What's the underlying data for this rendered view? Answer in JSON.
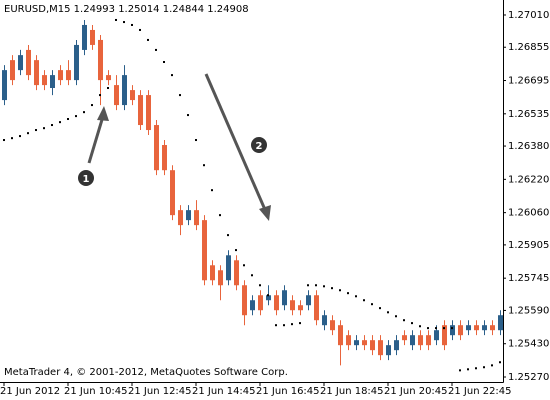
{
  "chart_data": {
    "type": "candlestick",
    "title": "EURUSD,M15  1.24993 1.25014 1.24844 1.24908",
    "footer": "MetaTrader 4, © 2001-2012, MetaQuotes Software Corp.",
    "annotations": [
      "1",
      "2"
    ],
    "bull_color": "#2b5f8a",
    "bear_color": "#e8643c",
    "sar_color": "#000000",
    "ylim": [
      1.25246,
      1.27082
    ],
    "yticks": [
      {
        "value": 1.2701,
        "label": "1.27010"
      },
      {
        "value": 1.26855,
        "label": "1.26855"
      },
      {
        "value": 1.26695,
        "label": "1.26695"
      },
      {
        "value": 1.26535,
        "label": "1.26535"
      },
      {
        "value": 1.2638,
        "label": "1.26380"
      },
      {
        "value": 1.2622,
        "label": "1.26220"
      },
      {
        "value": 1.2606,
        "label": "1.26060"
      },
      {
        "value": 1.25905,
        "label": "1.25905"
      },
      {
        "value": 1.25745,
        "label": "1.25745"
      },
      {
        "value": 1.2559,
        "label": "1.25590"
      },
      {
        "value": 1.2543,
        "label": "1.25430"
      },
      {
        "value": 1.2527,
        "label": "1.25270"
      }
    ],
    "xticks": [
      {
        "value": 0,
        "label": "21 Jun 2012"
      },
      {
        "value": 8,
        "label": "21 Jun 10:45"
      },
      {
        "value": 16,
        "label": "21 Jun 12:45"
      },
      {
        "value": 24,
        "label": "21 Jun 14:45"
      },
      {
        "value": 32,
        "label": "21 Jun 16:45"
      },
      {
        "value": 40,
        "label": "21 Jun 18:45"
      },
      {
        "value": 48,
        "label": "21 Jun 20:45"
      },
      {
        "value": 56,
        "label": "21 Jun 22:45"
      }
    ],
    "open": [
      1.26601,
      1.26793,
      1.26745,
      1.26842,
      1.26793,
      1.26721,
      1.26659,
      1.26745,
      1.26745,
      1.26697,
      1.26842,
      1.26938,
      1.2689,
      1.26721,
      1.26673,
      1.26577,
      1.26649,
      1.26625,
      1.26625,
      1.26481,
      1.26385,
      1.26264,
      1.26072,
      1.26024,
      1.26072,
      1.26024,
      1.25807,
      1.25783,
      1.25735,
      1.25831,
      1.25711,
      1.25591,
      1.25663,
      1.25639,
      1.25663,
      1.25615,
      1.25639,
      1.25615,
      1.25615,
      1.25663,
      1.25519,
      1.25543,
      1.25519,
      1.25471,
      1.25423,
      1.25447,
      1.25447,
      1.25447,
      1.25375,
      1.25399,
      1.25471,
      1.25423,
      1.25471,
      1.25471,
      1.25447,
      1.25519,
      1.25471,
      1.25519,
      1.25495,
      1.25519,
      1.25495,
      1.25519,
      1.25495
    ],
    "high": [
      1.26769,
      1.26817,
      1.26842,
      1.26866,
      1.26817,
      1.26745,
      1.26745,
      1.26769,
      1.26793,
      1.2689,
      1.26986,
      1.26962,
      1.26914,
      1.26745,
      1.26721,
      1.26769,
      1.26673,
      1.26649,
      1.26649,
      1.26505,
      1.26409,
      1.26288,
      1.26096,
      1.26096,
      1.2612,
      1.26048,
      1.25831,
      1.25807,
      1.25879,
      1.25855,
      1.25735,
      1.25663,
      1.25687,
      1.25711,
      1.25687,
      1.25711,
      1.25663,
      1.25639,
      1.25687,
      1.25687,
      1.25591,
      1.25567,
      1.25543,
      1.25495,
      1.25471,
      1.25471,
      1.25471,
      1.25471,
      1.25447,
      1.25471,
      1.25495,
      1.25495,
      1.25495,
      1.25495,
      1.25519,
      1.25543,
      1.25543,
      1.25543,
      1.25543,
      1.25543,
      1.25543,
      1.25543,
      1.25591
    ],
    "low": [
      1.26577,
      1.26673,
      1.26721,
      1.26697,
      1.26649,
      1.26649,
      1.26625,
      1.26673,
      1.26673,
      1.26673,
      1.26817,
      1.26842,
      1.26577,
      1.26673,
      1.26553,
      1.26553,
      1.26577,
      1.26457,
      1.26433,
      1.2624,
      1.2624,
      1.26024,
      1.25952,
      1.26,
      1.25976,
      1.25711,
      1.25711,
      1.25639,
      1.25711,
      1.25687,
      1.25519,
      1.25567,
      1.25567,
      1.25615,
      1.25567,
      1.25591,
      1.25567,
      1.25567,
      1.25591,
      1.25519,
      1.25495,
      1.25471,
      1.25326,
      1.25399,
      1.25399,
      1.25399,
      1.25375,
      1.25351,
      1.25351,
      1.25375,
      1.25423,
      1.25399,
      1.25399,
      1.25399,
      1.25423,
      1.25399,
      1.25447,
      1.25447,
      1.25471,
      1.25471,
      1.25471,
      1.25471,
      1.25471
    ],
    "close": [
      1.26745,
      1.26697,
      1.26817,
      1.26721,
      1.26673,
      1.26673,
      1.26721,
      1.26697,
      1.26697,
      1.26866,
      1.26962,
      1.26866,
      1.26697,
      1.26697,
      1.26577,
      1.26721,
      1.26601,
      1.26481,
      1.26457,
      1.26264,
      1.26264,
      1.26048,
      1.26,
      1.26072,
      1.26,
      1.25735,
      1.25735,
      1.25711,
      1.25855,
      1.25711,
      1.25567,
      1.25639,
      1.25591,
      1.25663,
      1.25591,
      1.25687,
      1.25591,
      1.25591,
      1.25663,
      1.25543,
      1.25567,
      1.25495,
      1.25423,
      1.25423,
      1.25447,
      1.25423,
      1.25399,
      1.25375,
      1.25423,
      1.25447,
      1.25447,
      1.25471,
      1.25423,
      1.25423,
      1.25495,
      1.25423,
      1.25519,
      1.25471,
      1.25519,
      1.25495,
      1.25519,
      1.25495,
      1.25567
    ],
    "sar": [
      1.26409,
      1.26418,
      1.26428,
      1.26442,
      1.26457,
      1.26466,
      1.26481,
      1.26495,
      1.2651,
      1.26524,
      1.26543,
      1.26577,
      1.26625,
      1.26659,
      1.26986,
      1.26976,
      1.26962,
      1.26938,
      1.2689,
      1.26842,
      1.26784,
      1.26721,
      1.26625,
      1.26529,
      1.26409,
      1.26288,
      1.26168,
      1.26048,
      1.25952,
      1.2588,
      1.25807,
      1.25759,
      1.25711,
      1.25663,
      1.25519,
      1.25519,
      1.25524,
      1.25529,
      1.25711,
      1.25711,
      1.25706,
      1.25697,
      1.25687,
      1.25673,
      1.25658,
      1.25639,
      1.2562,
      1.25601,
      1.25581,
      1.25562,
      1.25543,
      1.25529,
      1.25514,
      1.25505,
      1.25505,
      1.25505,
      1.25505,
      1.25302,
      1.25307,
      1.25312,
      1.25317,
      1.25326,
      1.25341
    ]
  }
}
